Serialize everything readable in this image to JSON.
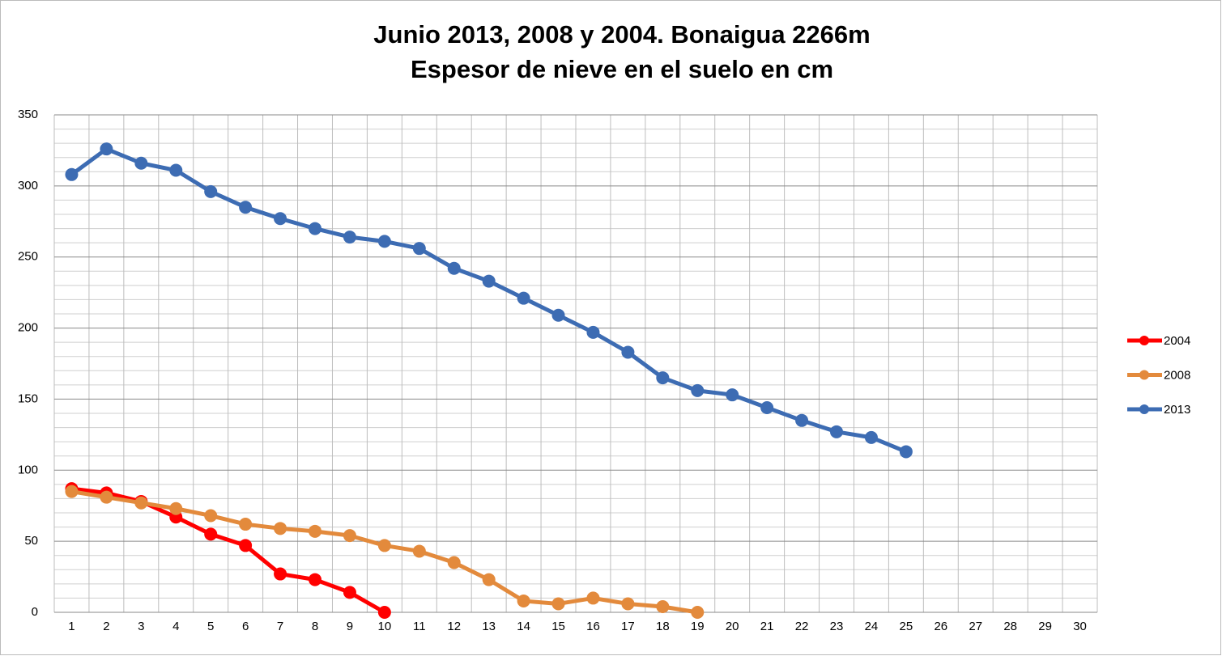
{
  "chart_data": {
    "type": "line",
    "title": "Junio 2013, 2008 y  2004. Bonaigua 2266m",
    "subtitle": "Espesor de nieve en el suelo en cm",
    "categories": [
      1,
      2,
      3,
      4,
      5,
      6,
      7,
      8,
      9,
      10,
      11,
      12,
      13,
      14,
      15,
      16,
      17,
      18,
      19,
      20,
      21,
      22,
      23,
      24,
      25,
      26,
      27,
      28,
      29,
      30
    ],
    "series": [
      {
        "name": "2004",
        "color": "#ff0000",
        "values": [
          87,
          84,
          78,
          67,
          55,
          47,
          27,
          23,
          14,
          0,
          null,
          null,
          null,
          null,
          null,
          null,
          null,
          null,
          null,
          null,
          null,
          null,
          null,
          null,
          null,
          null,
          null,
          null,
          null,
          null
        ]
      },
      {
        "name": "2008",
        "color": "#e38a3c",
        "values": [
          85,
          81,
          77,
          73,
          68,
          62,
          59,
          57,
          54,
          47,
          43,
          35,
          23,
          8,
          6,
          10,
          6,
          4,
          0,
          null,
          null,
          null,
          null,
          null,
          null,
          null,
          null,
          null,
          null,
          null
        ]
      },
      {
        "name": "2013",
        "color": "#3d6cb3",
        "values": [
          308,
          326,
          316,
          311,
          296,
          285,
          277,
          270,
          264,
          261,
          256,
          242,
          233,
          221,
          209,
          197,
          183,
          165,
          156,
          153,
          144,
          135,
          127,
          123,
          113,
          null,
          null,
          null,
          null,
          null
        ]
      }
    ],
    "ylim": [
      0,
      350
    ],
    "yticks": [
      0,
      50,
      100,
      150,
      200,
      250,
      300,
      350
    ],
    "minor_yticks": [
      10,
      20,
      30,
      40,
      60,
      70,
      80,
      90,
      110,
      120,
      130,
      140,
      160,
      170,
      180,
      190,
      210,
      220,
      230,
      240,
      260,
      270,
      280,
      290,
      310,
      320,
      330,
      340
    ],
    "grid": true,
    "legend": "right"
  }
}
